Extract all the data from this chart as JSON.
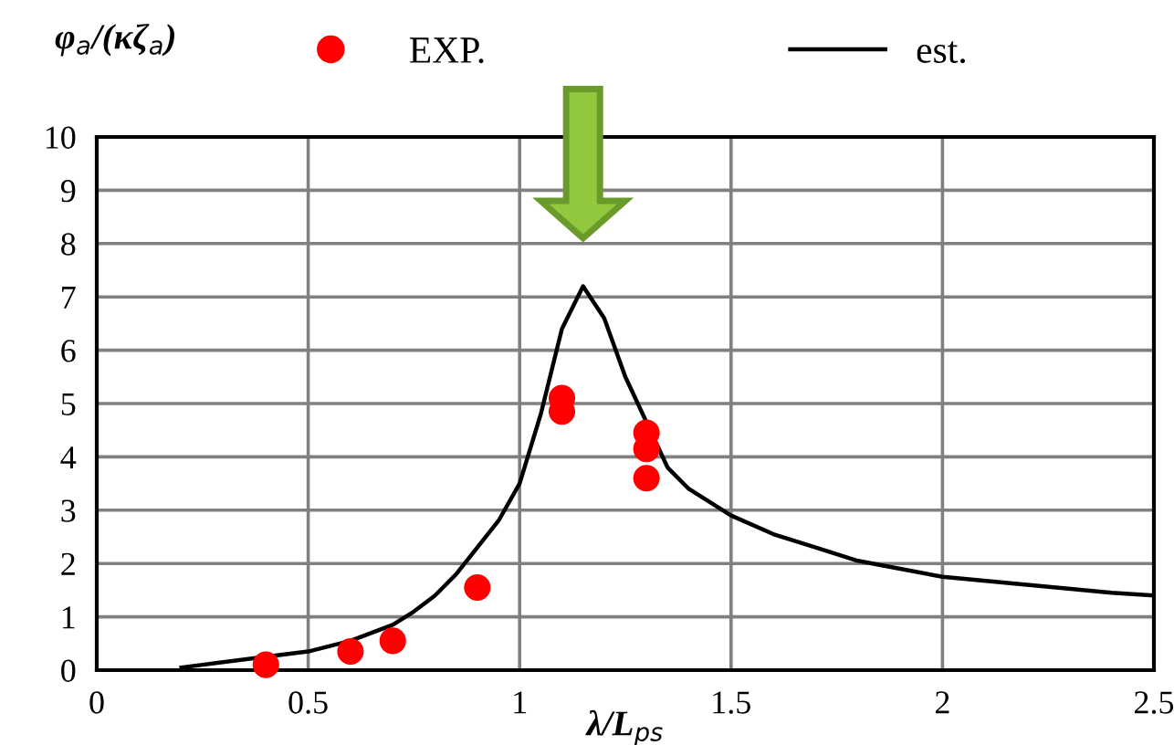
{
  "chart_data": {
    "type": "scatter",
    "xlabel": "λ/L$_{ps}$",
    "ylabel": "φ$_{a}$/(κζ$_{a}$)",
    "xlim": [
      0,
      2.5
    ],
    "xticks": [
      0,
      0.5,
      1,
      1.5,
      2,
      2.5
    ],
    "ylim": [
      0,
      10
    ],
    "yticks": [
      0,
      1,
      2,
      3,
      4,
      5,
      6,
      7,
      8,
      9,
      10
    ],
    "grid": true,
    "legend": "top",
    "series": [
      {
        "name": "EXP.",
        "color": "#ff0000",
        "marker": "circle",
        "x": [
          0.4,
          0.6,
          0.7,
          0.9,
          1.1,
          1.1,
          1.3,
          1.3,
          1.3
        ],
        "values": [
          0.1,
          0.35,
          0.55,
          1.55,
          5.1,
          4.85,
          4.45,
          4.15,
          3.6
        ]
      },
      {
        "name": "est.",
        "type": "line",
        "color": "#000000",
        "line_style": "solid",
        "x": [
          0.2,
          0.5,
          0.6,
          0.7,
          0.75,
          0.8,
          0.85,
          0.9,
          0.95,
          1.0,
          1.05,
          1.1,
          1.15,
          1.2,
          1.25,
          1.35,
          1.4,
          1.5,
          1.6,
          1.7,
          1.8,
          1.9,
          2.0,
          2.2,
          2.4,
          2.5
        ],
        "values": [
          0.05,
          0.35,
          0.55,
          0.85,
          1.1,
          1.4,
          1.8,
          2.3,
          2.8,
          3.5,
          4.8,
          6.4,
          7.2,
          6.6,
          5.5,
          3.8,
          3.4,
          2.9,
          2.55,
          2.3,
          2.05,
          1.9,
          1.75,
          1.6,
          1.45,
          1.4
        ]
      }
    ]
  }
}
